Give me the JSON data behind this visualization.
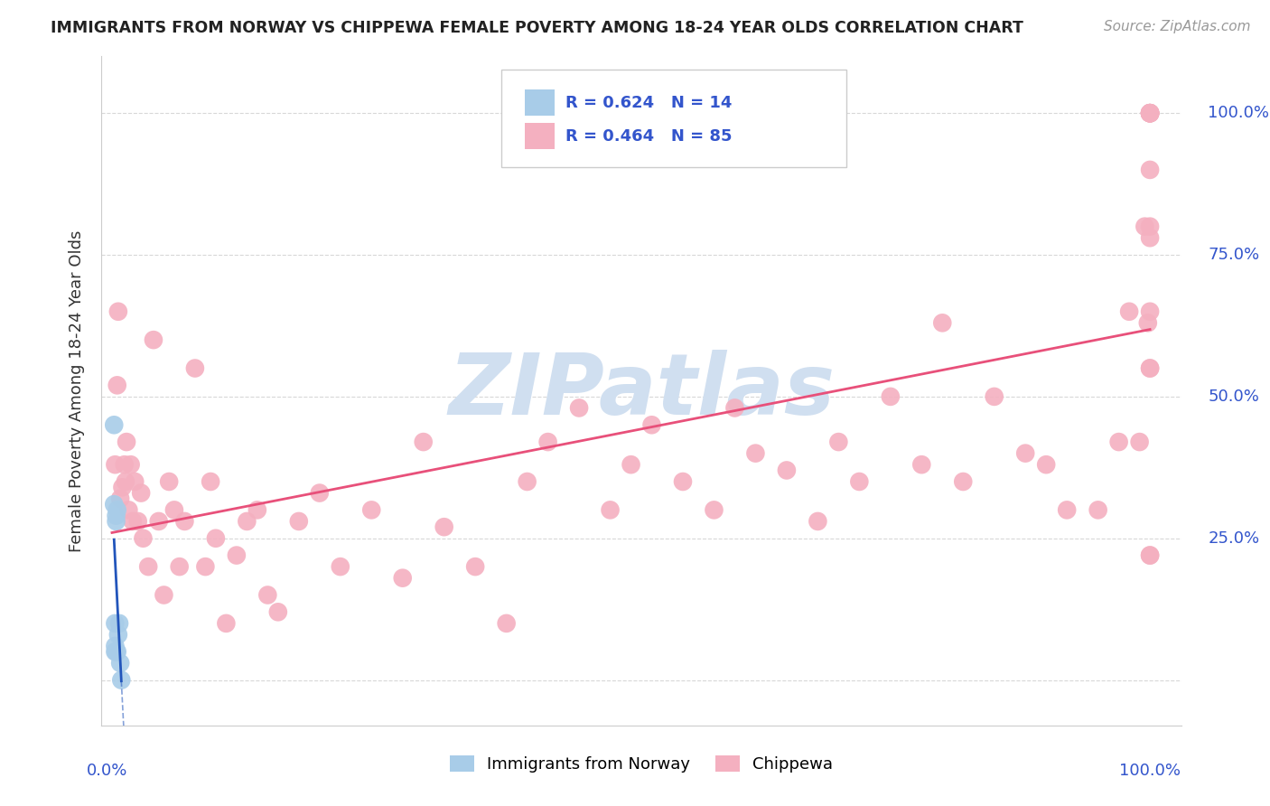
{
  "title": "IMMIGRANTS FROM NORWAY VS CHIPPEWA FEMALE POVERTY AMONG 18-24 YEAR OLDS CORRELATION CHART",
  "source": "Source: ZipAtlas.com",
  "ylabel": "Female Poverty Among 18-24 Year Olds",
  "norway_color": "#a8cce8",
  "chippewa_color": "#f4b0c0",
  "norway_line_color": "#2255bb",
  "chippewa_line_color": "#e8507a",
  "legend_text_color": "#3355cc",
  "ytick_color": "#3355cc",
  "xtick_color": "#3355cc",
  "background_color": "#ffffff",
  "watermark_color": "#d0dff0",
  "norway_scatter_x": [
    0.002,
    0.002,
    0.003,
    0.003,
    0.003,
    0.004,
    0.004,
    0.004,
    0.005,
    0.005,
    0.006,
    0.007,
    0.008,
    0.009
  ],
  "norway_scatter_y": [
    0.31,
    0.45,
    0.05,
    0.06,
    0.1,
    0.28,
    0.29,
    0.05,
    0.3,
    0.05,
    0.08,
    0.1,
    0.03,
    0.0
  ],
  "chippewa_scatter_x": [
    0.003,
    0.005,
    0.006,
    0.008,
    0.01,
    0.012,
    0.013,
    0.014,
    0.016,
    0.018,
    0.02,
    0.022,
    0.025,
    0.028,
    0.03,
    0.035,
    0.04,
    0.045,
    0.05,
    0.055,
    0.06,
    0.065,
    0.07,
    0.08,
    0.09,
    0.095,
    0.1,
    0.11,
    0.12,
    0.13,
    0.14,
    0.15,
    0.16,
    0.18,
    0.2,
    0.22,
    0.25,
    0.28,
    0.3,
    0.32,
    0.35,
    0.38,
    0.4,
    0.42,
    0.45,
    0.48,
    0.5,
    0.52,
    0.55,
    0.58,
    0.6,
    0.62,
    0.65,
    0.68,
    0.7,
    0.72,
    0.75,
    0.78,
    0.8,
    0.82,
    0.85,
    0.88,
    0.9,
    0.92,
    0.95,
    0.97,
    0.98,
    0.99,
    0.995,
    0.998,
    1.0,
    1.0,
    1.0,
    1.0,
    1.0,
    1.0,
    1.0,
    1.0,
    1.0,
    1.0,
    1.0,
    1.0,
    1.0,
    1.0,
    1.0
  ],
  "chippewa_scatter_y": [
    0.38,
    0.52,
    0.65,
    0.32,
    0.34,
    0.38,
    0.35,
    0.42,
    0.3,
    0.38,
    0.28,
    0.35,
    0.28,
    0.33,
    0.25,
    0.2,
    0.6,
    0.28,
    0.15,
    0.35,
    0.3,
    0.2,
    0.28,
    0.55,
    0.2,
    0.35,
    0.25,
    0.1,
    0.22,
    0.28,
    0.3,
    0.15,
    0.12,
    0.28,
    0.33,
    0.2,
    0.3,
    0.18,
    0.42,
    0.27,
    0.2,
    0.1,
    0.35,
    0.42,
    0.48,
    0.3,
    0.38,
    0.45,
    0.35,
    0.3,
    0.48,
    0.4,
    0.37,
    0.28,
    0.42,
    0.35,
    0.5,
    0.38,
    0.63,
    0.35,
    0.5,
    0.4,
    0.38,
    0.3,
    0.3,
    0.42,
    0.65,
    0.42,
    0.8,
    0.63,
    0.22,
    0.55,
    1.0,
    1.0,
    1.0,
    0.9,
    0.65,
    0.8,
    1.0,
    1.0,
    1.0,
    0.55,
    0.78,
    0.22,
    1.0
  ],
  "norway_R": 0.624,
  "norway_N": 14,
  "chippewa_R": 0.464,
  "chippewa_N": 85
}
